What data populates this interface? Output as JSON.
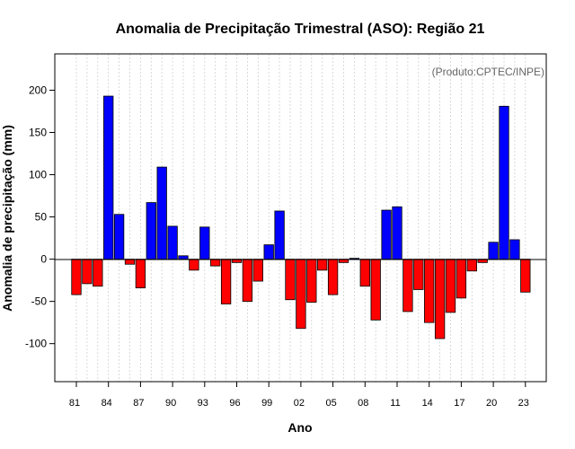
{
  "chart_data": {
    "type": "bar",
    "title": "Anomalia de Precipitação Trimestral (ASO): Região 21",
    "credit": "(Produto:CPTEC/INPE)",
    "xlabel": "Ano",
    "ylabel": "Anomalia de precipitação (mm)",
    "ylim": [
      -145,
      243
    ],
    "yticks": [
      -100,
      -50,
      0,
      50,
      100,
      150,
      200
    ],
    "ytick_labels": [
      "-100",
      "-50",
      "0",
      "50",
      "100",
      "150",
      "200"
    ],
    "xtick_labels": [
      "81",
      "84",
      "87",
      "90",
      "93",
      "96",
      "99",
      "02",
      "05",
      "08",
      "11",
      "14",
      "17",
      "20",
      "23"
    ],
    "xtick_every": 3,
    "years": [
      1981,
      1982,
      1983,
      1984,
      1985,
      1986,
      1987,
      1988,
      1989,
      1990,
      1991,
      1992,
      1993,
      1994,
      1995,
      1996,
      1997,
      1998,
      1999,
      2000,
      2001,
      2002,
      2003,
      2004,
      2005,
      2006,
      2007,
      2008,
      2009,
      2010,
      2011,
      2012,
      2013,
      2014,
      2015,
      2016,
      2017,
      2018,
      2019,
      2020,
      2021,
      2022,
      2023
    ],
    "values": [
      -42,
      -29,
      -32,
      193,
      53,
      -6,
      -34,
      67,
      109,
      39,
      4,
      -13,
      38,
      -8,
      -53,
      -4,
      -50,
      -26,
      17,
      57,
      -48,
      -82,
      -51,
      -13,
      -42,
      -4,
      1,
      -32,
      -72,
      58,
      62,
      -62,
      -36,
      -75,
      -94,
      -63,
      -46,
      -14,
      -4,
      20,
      181,
      23,
      -39
    ],
    "positive_color": "#0000ff",
    "negative_color": "#ff0000",
    "grid": true
  }
}
